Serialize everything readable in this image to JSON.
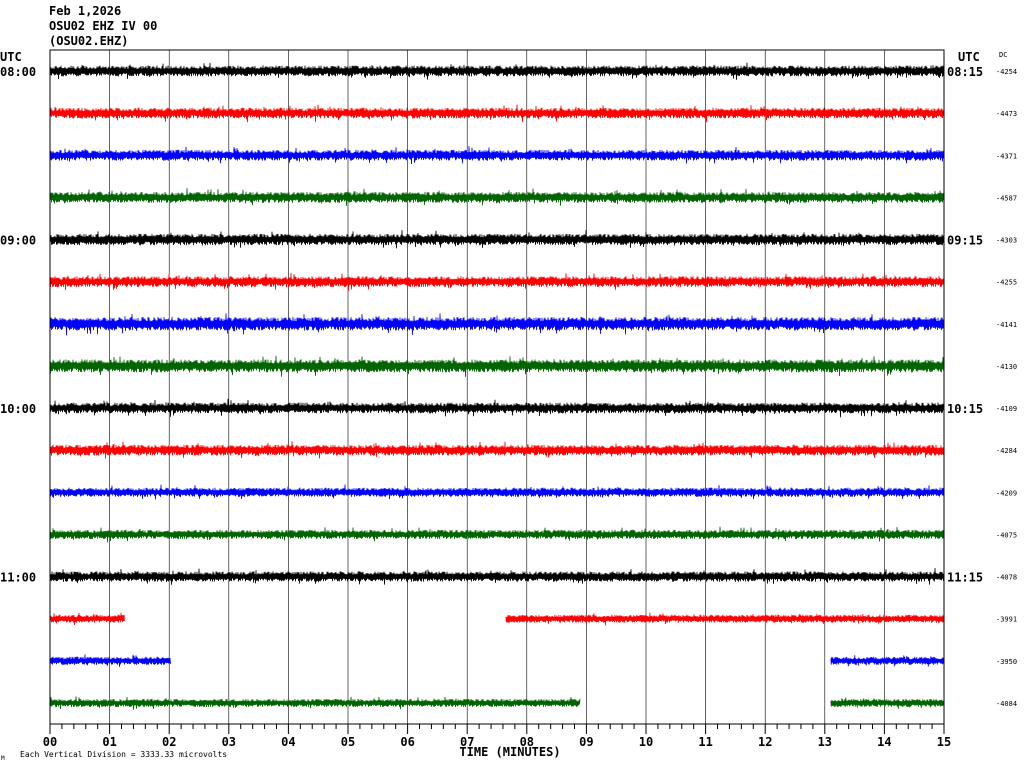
{
  "header": {
    "date": "Feb 1,2026",
    "station": "OSU02 EHZ IV 00",
    "channel_code": "(OSU02.EHZ)"
  },
  "axis": {
    "left_utc": "UTC",
    "right_utc": "UTC",
    "dc_label": "DC",
    "x_label": "TIME (MINUTES)",
    "scale_note": "Each Vertical Division = 3333.33 microvolts"
  },
  "chart_data": {
    "type": "line",
    "title": "",
    "xlabel": "TIME (MINUTES)",
    "xlim": [
      0,
      15
    ],
    "x_ticks": [
      "00",
      "01",
      "02",
      "03",
      "04",
      "05",
      "06",
      "07",
      "08",
      "09",
      "10",
      "11",
      "12",
      "13",
      "14",
      "15"
    ],
    "left_labels": [
      "08:00",
      "09:00",
      "10:00",
      "11:00"
    ],
    "right_labels": [
      "08:15",
      "09:15",
      "10:15",
      "11:15"
    ],
    "colors": [
      "#000000",
      "#ff0000",
      "#0000ff",
      "#006400"
    ],
    "traces": [
      {
        "dc": "-4254",
        "segments": [
          [
            0,
            15
          ]
        ],
        "amp": 1.0
      },
      {
        "dc": "-4473",
        "segments": [
          [
            0,
            15
          ]
        ],
        "amp": 1.0
      },
      {
        "dc": "-4371",
        "segments": [
          [
            0,
            15
          ]
        ],
        "amp": 1.0
      },
      {
        "dc": "-4587",
        "segments": [
          [
            0,
            15
          ]
        ],
        "amp": 1.0
      },
      {
        "dc": "-4303",
        "segments": [
          [
            0,
            15
          ]
        ],
        "amp": 1.05
      },
      {
        "dc": "-4255",
        "segments": [
          [
            0,
            15
          ]
        ],
        "amp": 1.0
      },
      {
        "dc": "-4141",
        "segments": [
          [
            0,
            15
          ]
        ],
        "amp": 1.25
      },
      {
        "dc": "-4130",
        "segments": [
          [
            0,
            15
          ]
        ],
        "amp": 1.2
      },
      {
        "dc": "-4109",
        "segments": [
          [
            0,
            15
          ]
        ],
        "amp": 1.0
      },
      {
        "dc": "-4284",
        "segments": [
          [
            0,
            15
          ]
        ],
        "amp": 1.0
      },
      {
        "dc": "-4209",
        "segments": [
          [
            0,
            15
          ]
        ],
        "amp": 0.85
      },
      {
        "dc": "-4075",
        "segments": [
          [
            0,
            15
          ]
        ],
        "amp": 0.85
      },
      {
        "dc": "-4078",
        "segments": [
          [
            0,
            15
          ]
        ],
        "amp": 0.95
      },
      {
        "dc": "-3991",
        "segments": [
          [
            0,
            1.25
          ],
          [
            7.65,
            15
          ]
        ],
        "amp": 0.75
      },
      {
        "dc": "-3950",
        "segments": [
          [
            0,
            2.03
          ],
          [
            13.1,
            15
          ]
        ],
        "amp": 0.75
      },
      {
        "dc": "-4084",
        "segments": [
          [
            0,
            8.9
          ],
          [
            13.1,
            15
          ]
        ],
        "amp": 0.75
      }
    ]
  }
}
